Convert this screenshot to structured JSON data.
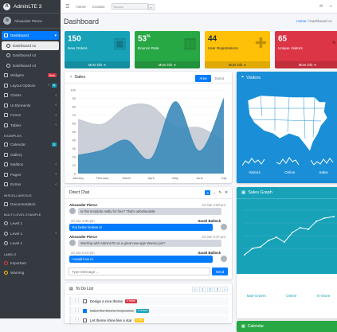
{
  "brand": {
    "title": "AdminLTE 3",
    "logo": "A"
  },
  "user": {
    "name": "Alexander Pierce"
  },
  "sidebar": {
    "items": [
      {
        "label": "Dashboard",
        "icon": "tachometer-icon",
        "active": true,
        "chev": "▾"
      },
      {
        "label": "Dashboard v1",
        "sub": true,
        "active": true
      },
      {
        "label": "Dashboard v2",
        "sub": true
      },
      {
        "label": "Dashboard v3",
        "sub": true
      },
      {
        "label": "Widgets",
        "icon": "grid-icon",
        "badge": "New"
      },
      {
        "label": "Layout Options",
        "icon": "copy-icon",
        "chev": "‹",
        "badge2": "6"
      },
      {
        "label": "Charts",
        "icon": "pie-chart-icon",
        "chev": "‹"
      },
      {
        "label": "UI Elements",
        "icon": "tree-icon",
        "chev": "‹"
      },
      {
        "label": "Forms",
        "icon": "edit-icon",
        "chev": "‹"
      },
      {
        "label": "Tables",
        "icon": "table-icon",
        "chev": "‹"
      }
    ],
    "header_examples": "EXAMPLES",
    "examples": [
      {
        "label": "Calendar",
        "icon": "calendar-icon",
        "badge": "2"
      },
      {
        "label": "Gallery",
        "icon": "image-icon"
      },
      {
        "label": "Mailbox",
        "icon": "envelope-icon",
        "chev": "‹"
      },
      {
        "label": "Pages",
        "icon": "book-icon",
        "chev": "‹"
      },
      {
        "label": "Extras",
        "icon": "plus-square-icon",
        "chev": "‹"
      }
    ],
    "header_misc": "MISCELLANEOUS",
    "misc": [
      {
        "label": "Documentation",
        "icon": "file-icon"
      }
    ],
    "header_multi": "MULTI LEVEL EXAMPLE",
    "multi": [
      {
        "label": "Level 1",
        "icon": "circle-icon"
      },
      {
        "label": "Level 1",
        "icon": "circle-icon",
        "chev": "‹"
      },
      {
        "label": "Level 1",
        "icon": "circle-icon"
      }
    ],
    "header_labels": "LABELS",
    "labels": [
      {
        "label": "Important",
        "icon": "circle-icon",
        "color": "#dc3545"
      },
      {
        "label": "Warning",
        "icon": "circle-icon",
        "color": "#ffc107"
      }
    ]
  },
  "topnav": {
    "home": "Home",
    "contact": "Contact",
    "search_placeholder": "Search",
    "search_icon": "search-icon"
  },
  "page": {
    "title": "Dashboard",
    "crumb_home": "Home",
    "crumb_sep": "/",
    "crumb_current": "Dashboard v1"
  },
  "stats": [
    {
      "value": "150",
      "sup": "",
      "label": "New Orders",
      "more": "More info",
      "color": "#17a2b8",
      "icon": "shopping-bag-icon",
      "textColor": "#fff"
    },
    {
      "value": "53",
      "sup": "%",
      "label": "Bounce Rate",
      "more": "More info",
      "color": "#28a745",
      "icon": "bar-chart-icon",
      "textColor": "#fff"
    },
    {
      "value": "44",
      "sup": "",
      "label": "User Registrations",
      "more": "More info",
      "color": "#ffc107",
      "icon": "user-plus-icon",
      "textColor": "#1f2d3d"
    },
    {
      "value": "65",
      "sup": "",
      "label": "Unique Visitors",
      "more": "More info",
      "color": "#dc3545",
      "icon": "pie-chart-icon",
      "textColor": "#fff"
    }
  ],
  "sales": {
    "title": "Sales",
    "tab_area": "Area",
    "tab_donut": "Donut",
    "chart_data": {
      "type": "area",
      "categories": [
        "January",
        "February",
        "March",
        "April",
        "May",
        "June",
        "July"
      ],
      "series": [
        {
          "values": [
            22,
            28,
            40,
            18,
            86,
            27,
            90
          ],
          "color": "#3b8bba"
        },
        {
          "values": [
            65,
            59,
            80,
            81,
            56,
            55,
            40
          ],
          "color": "#c1c7d1"
        }
      ],
      "ylim": [
        0,
        100
      ],
      "yticks": [
        0,
        10,
        20,
        30,
        40,
        50,
        60,
        70,
        80,
        90,
        100
      ],
      "grid": true
    }
  },
  "visitors": {
    "title": "Visitors",
    "labels": [
      "Visitors",
      "Online",
      "Sales"
    ]
  },
  "chat": {
    "title": "Direct Chat",
    "count": "3",
    "messages": [
      {
        "name": "Alexander Pierce",
        "time": "23 Jan 2:00 pm",
        "text": "Is this template really for free? That's unbelievable!",
        "side": "left"
      },
      {
        "name": "Sarah Bullock",
        "time": "23 Jan 2:05 pm",
        "text": "You better believe it!",
        "side": "right"
      },
      {
        "name": "Alexander Pierce",
        "time": "23 Jan 5:37 pm",
        "text": "Working with AdminLTE on a great new app! Wanna join?",
        "side": "left"
      },
      {
        "name": "Sarah Bullock",
        "time": "23 Jan 6:10 pm",
        "text": "I would love to.",
        "side": "right"
      }
    ],
    "placeholder": "Type Message ...",
    "send": "Send"
  },
  "sales_graph": {
    "title": "Sales Graph",
    "knobs": [
      {
        "label": "Mail-Orders"
      },
      {
        "label": "Online"
      },
      {
        "label": "In-Store"
      }
    ]
  },
  "todo": {
    "title": "To Do List",
    "pager": [
      "«",
      "1",
      "2",
      "3",
      "»"
    ],
    "items": [
      {
        "text": "Design a nice theme",
        "badge": "2 mins",
        "badgeColor": "#dc3545",
        "checked": false
      },
      {
        "text": "Make the theme responsive",
        "badge": "4 hours",
        "badgeColor": "#17a2b8",
        "checked": true
      },
      {
        "text": "Let theme shine like a star",
        "badge": "1 day",
        "badgeColor": "#ffc107",
        "checked": false
      }
    ]
  },
  "calendar": {
    "title": "Calendar"
  }
}
